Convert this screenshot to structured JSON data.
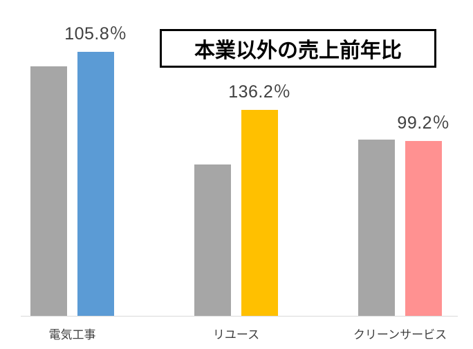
{
  "chart_data": {
    "type": "bar",
    "title": "本業以外の売上前年比",
    "categories": [
      "電気工事",
      "リユース",
      "クリーンサービス"
    ],
    "series": [
      {
        "name": "previous-year-gray",
        "color": "#a6a6a6",
        "values": [
          366,
          222,
          259
        ]
      },
      {
        "name": "current-year-colored",
        "colors": [
          "#5b9bd5",
          "#ffc000",
          "#ff9191"
        ],
        "values": [
          387,
          302,
          257
        ]
      }
    ],
    "data_labels": [
      "105.8％",
      "136.2％",
      "99.2％"
    ],
    "ratios_percent": [
      105.8,
      136.2,
      99.2
    ],
    "ylim": [
      0,
      400
    ],
    "grid": false,
    "legend": "none"
  },
  "colors": {
    "axis_line": "#d9d9d9",
    "label_text": "#404040",
    "title_text": "#000000",
    "title_border": "#000000"
  }
}
